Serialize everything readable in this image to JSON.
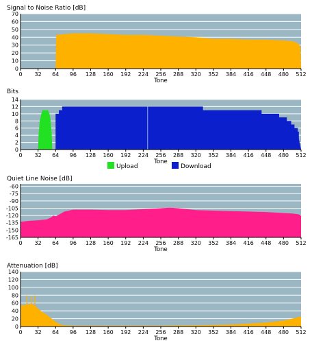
{
  "colors": {
    "plot_bg": "#9ab7c3",
    "grid": "#ffffff",
    "snr": "#ffb100",
    "upload": "#22e022",
    "download": "#0c1fcc",
    "noise": "#ff1e8a",
    "attenuation": "#ffb100"
  },
  "chart_data": [
    {
      "type": "area",
      "title": "Signal to Noise Ratio [dB]",
      "xlabel": "Tone",
      "ylabel": "",
      "xlim": [
        0,
        512
      ],
      "ylim": [
        0,
        70
      ],
      "x_ticks": [
        0,
        32,
        64,
        96,
        128,
        160,
        192,
        224,
        256,
        288,
        320,
        352,
        384,
        416,
        448,
        480,
        512
      ],
      "y_ticks": [
        0,
        10,
        20,
        30,
        40,
        50,
        60,
        70
      ],
      "grid": true,
      "series": [
        {
          "x": [
            64,
            65,
            80,
            96,
            128,
            160,
            192,
            224,
            256,
            288,
            320,
            352,
            384,
            416,
            448,
            480,
            496,
            504,
            508,
            511,
            512
          ],
          "y": [
            0,
            43,
            44,
            45,
            45,
            44,
            43,
            43,
            42,
            41,
            40,
            38,
            38,
            37,
            37,
            36,
            35,
            33,
            31,
            28,
            0
          ]
        }
      ]
    },
    {
      "type": "area",
      "title": "Bits",
      "xlabel": "Tone",
      "ylabel": "",
      "xlim": [
        0,
        512
      ],
      "ylim": [
        0,
        14
      ],
      "x_ticks": [
        0,
        32,
        64,
        96,
        128,
        160,
        192,
        224,
        256,
        288,
        320,
        352,
        384,
        416,
        448,
        480,
        512
      ],
      "y_ticks": [
        0,
        2,
        4,
        6,
        8,
        10,
        12,
        14
      ],
      "grid": true,
      "legend": "bottom-center",
      "series": [
        {
          "name": "Upload",
          "x": [
            32,
            33,
            35,
            38,
            40,
            50,
            53,
            55,
            57,
            58
          ],
          "y": [
            0,
            4,
            8,
            10,
            11,
            11,
            10,
            8,
            4,
            0
          ]
        },
        {
          "name": "Download",
          "x": [
            64,
            64,
            70,
            70,
            76,
            76,
            333,
            333,
            440,
            440,
            472,
            472,
            486,
            486,
            494,
            494,
            500,
            500,
            506,
            506,
            508,
            508,
            512
          ],
          "y": [
            0,
            10,
            10,
            11,
            11,
            12,
            12,
            11,
            11,
            10,
            10,
            9,
            9,
            8,
            8,
            7,
            7,
            6,
            6,
            5,
            5,
            3,
            0
          ]
        }
      ]
    },
    {
      "type": "area",
      "title": "Quiet Line Noise [dB]",
      "xlabel": "Tone",
      "ylabel": "",
      "xlim": [
        0,
        512
      ],
      "ylim": [
        -165,
        -55
      ],
      "y_inverted": true,
      "x_ticks": [
        0,
        32,
        64,
        96,
        128,
        160,
        192,
        224,
        256,
        288,
        320,
        352,
        384,
        416,
        448,
        480,
        512
      ],
      "y_ticks": [
        -60,
        -75,
        -90,
        -105,
        -120,
        -135,
        -150,
        -165
      ],
      "grid": true,
      "series": [
        {
          "x": [
            0,
            8,
            16,
            32,
            48,
            56,
            60,
            64,
            72,
            80,
            96,
            128,
            160,
            192,
            224,
            256,
            272,
            288,
            320,
            352,
            384,
            416,
            448,
            480,
            496,
            504,
            508,
            510,
            512
          ],
          "y": [
            -133,
            -132,
            -131,
            -130,
            -128,
            -124,
            -120,
            -122,
            -117,
            -112,
            -108,
            -108,
            -109,
            -109,
            -107,
            -105,
            -104,
            -105,
            -109,
            -110,
            -111,
            -112,
            -113,
            -115,
            -116,
            -117,
            -118,
            -119,
            -121
          ]
        }
      ]
    },
    {
      "type": "area",
      "title": "Attenuation [dB]",
      "xlabel": "Tone",
      "ylabel": "",
      "xlim": [
        0,
        512
      ],
      "ylim": [
        0,
        140
      ],
      "x_ticks": [
        0,
        32,
        64,
        96,
        128,
        160,
        192,
        224,
        256,
        288,
        320,
        352,
        384,
        416,
        448,
        480,
        512
      ],
      "y_ticks": [
        0,
        20,
        40,
        60,
        80,
        100,
        120,
        140
      ],
      "grid": true,
      "series": [
        {
          "x": [
            0,
            4,
            8,
            12,
            16,
            20,
            24,
            28,
            32,
            40,
            48,
            56,
            64,
            72,
            80,
            96,
            128,
            192,
            256,
            320,
            384,
            448,
            480,
            496,
            504,
            508,
            512
          ],
          "y": [
            55,
            54,
            55,
            56,
            57,
            58,
            55,
            52,
            45,
            37,
            30,
            21,
            12,
            6,
            3,
            2,
            2,
            2,
            2,
            3,
            5,
            10,
            15,
            20,
            23,
            25,
            25
          ]
        }
      ]
    }
  ]
}
